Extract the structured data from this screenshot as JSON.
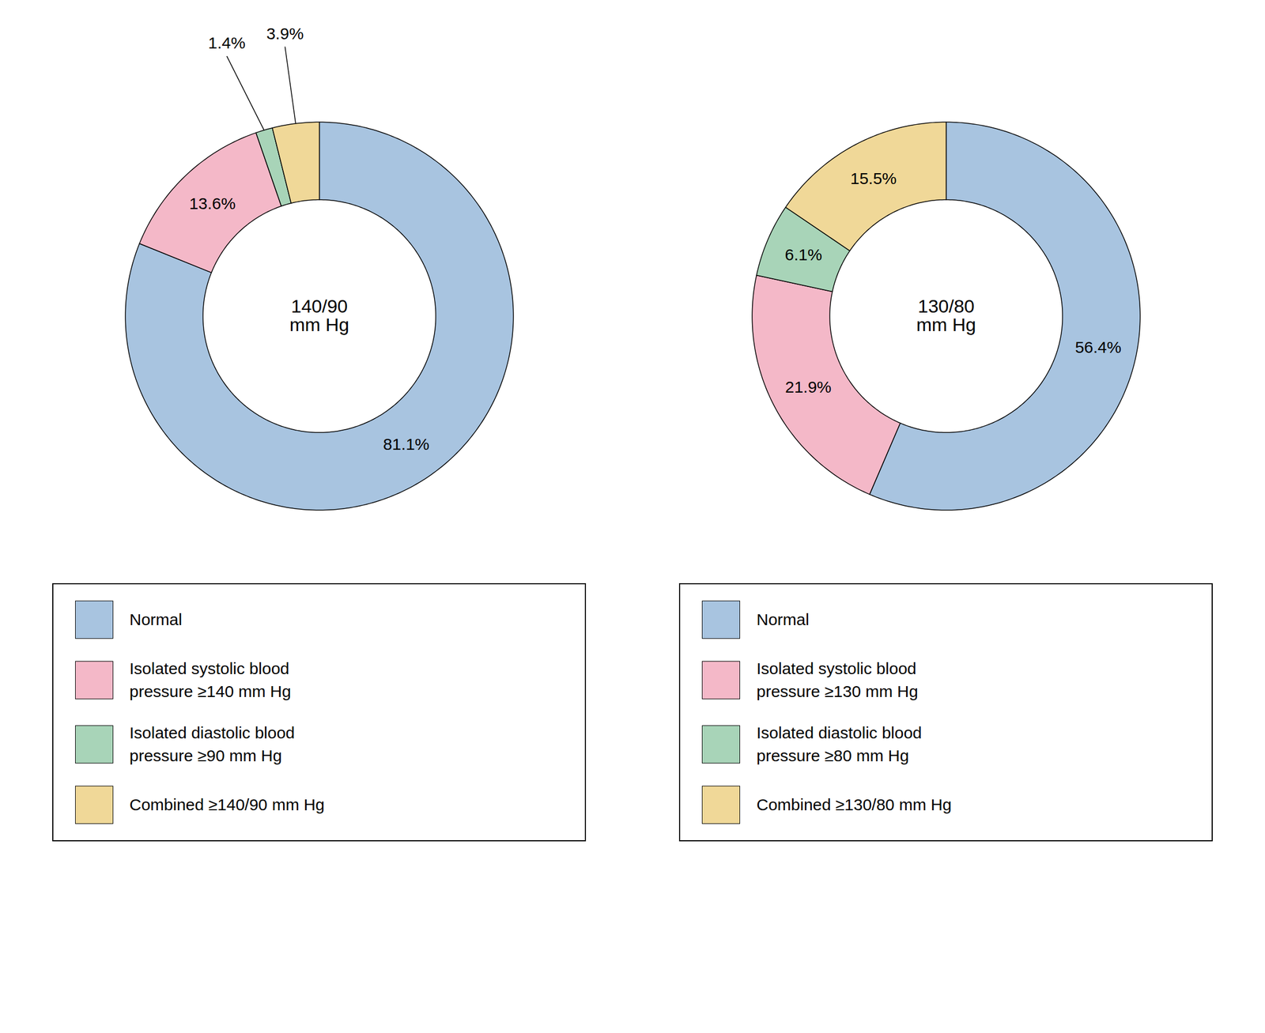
{
  "chart_data": [
    {
      "type": "donut",
      "annotation": "140/90\nmm Hg",
      "categories": [
        "Normal",
        "Isolated systolic blood\npressure ≥140 mm Hg",
        "Isolated diastolic blood\npressure ≥90 mm Hg",
        "Combined ≥140/90 mm Hg"
      ],
      "values": [
        81.1,
        13.6,
        1.4,
        3.9
      ],
      "value_labels": [
        "81.1%",
        "13.6%",
        "1.4%",
        "3.9%"
      ],
      "colors": [
        "#a8c4e0",
        "#f4b8c8",
        "#a8d4b8",
        "#f0d898"
      ],
      "data_labels": true,
      "legend": "bottom"
    },
    {
      "type": "donut",
      "annotation": "130/80\nmm Hg",
      "categories": [
        "Normal",
        "Isolated systolic blood\npressure ≥130 mm Hg",
        "Isolated diastolic blood\npressure ≥80 mm Hg",
        "Combined ≥130/80 mm Hg"
      ],
      "values": [
        56.4,
        21.9,
        6.1,
        15.5
      ],
      "value_labels": [
        "56.4%",
        "21.9%",
        "6.1%",
        "15.5%"
      ],
      "colors": [
        "#a8c4e0",
        "#f4b8c8",
        "#a8d4b8",
        "#f0d898"
      ],
      "data_labels": true,
      "legend": "bottom"
    }
  ]
}
